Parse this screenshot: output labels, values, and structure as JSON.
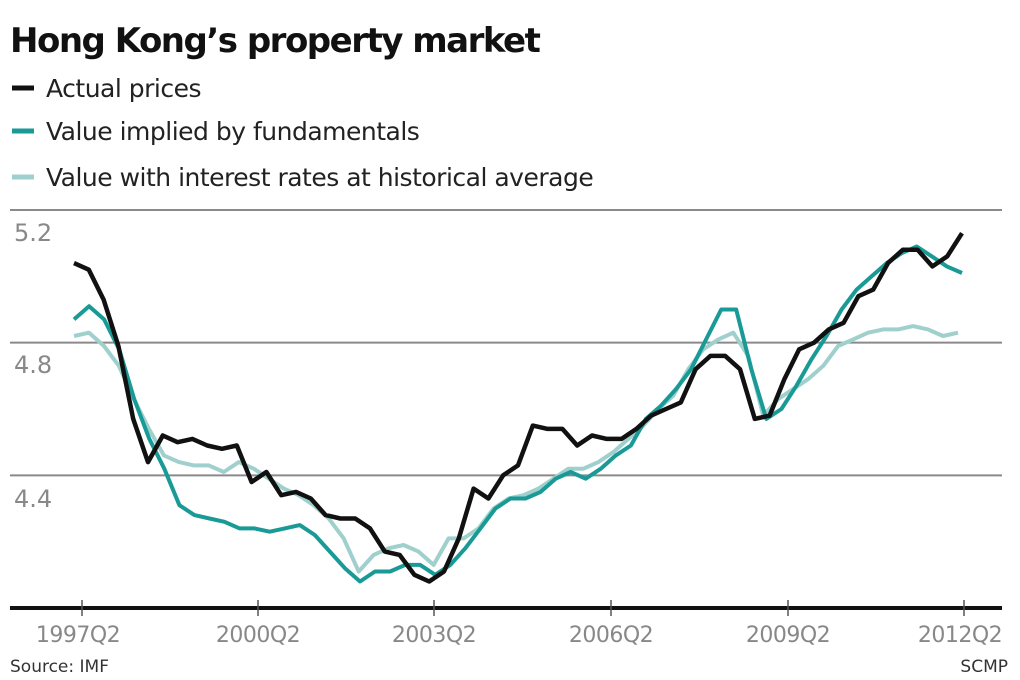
{
  "chart_data": {
    "type": "line",
    "title": "Hong Kong’s property market",
    "xlabel": "",
    "ylabel": "",
    "x_start": "1997Q2",
    "x_end": "2012Q2",
    "x_ticks": [
      "1997Q2",
      "2000Q2",
      "2003Q2",
      "2006Q2",
      "2009Q2",
      "2012Q2"
    ],
    "y_ticks": [
      "5.2",
      "4.8",
      "4.4"
    ],
    "ylim": [
      4.0,
      5.2
    ],
    "grid": true,
    "legend_position": "top-left",
    "series": [
      {
        "name": "Actual prices",
        "color": "#111111",
        "values": [
          5.04,
          5.02,
          4.93,
          4.79,
          4.57,
          4.44,
          4.52,
          4.5,
          4.51,
          4.49,
          4.48,
          4.49,
          4.38,
          4.41,
          4.34,
          4.35,
          4.33,
          4.28,
          4.27,
          4.27,
          4.24,
          4.17,
          4.16,
          4.1,
          4.08,
          4.11,
          4.21,
          4.36,
          4.33,
          4.4,
          4.43,
          4.55,
          4.54,
          4.54,
          4.49,
          4.52,
          4.51,
          4.51,
          4.54,
          4.58,
          4.6,
          4.62,
          4.72,
          4.76,
          4.76,
          4.72,
          4.57,
          4.58,
          4.69,
          4.78,
          4.8,
          4.84,
          4.86,
          4.94,
          4.96,
          5.04,
          5.08,
          5.08,
          5.03,
          5.06,
          5.13
        ]
      },
      {
        "name": "Value implied by fundamentals",
        "color": "#1a9a96",
        "values": [
          4.87,
          4.91,
          4.87,
          4.78,
          4.63,
          4.51,
          4.42,
          4.31,
          4.28,
          4.27,
          4.26,
          4.24,
          4.24,
          4.23,
          4.24,
          4.25,
          4.22,
          4.17,
          4.12,
          4.08,
          4.11,
          4.11,
          4.13,
          4.13,
          4.1,
          4.13,
          4.18,
          4.24,
          4.3,
          4.33,
          4.33,
          4.35,
          4.39,
          4.41,
          4.39,
          4.42,
          4.46,
          4.49,
          4.57,
          4.61,
          4.66,
          4.72,
          4.81,
          4.9,
          4.9,
          4.72,
          4.57,
          4.6,
          4.67,
          4.75,
          4.82,
          4.9,
          4.96,
          5.0,
          5.04,
          5.07,
          5.09,
          5.06,
          5.03,
          5.01
        ]
      },
      {
        "name": "Value with interest rates at historical average",
        "color": "#9fd0cd",
        "values": [
          4.82,
          4.83,
          4.79,
          4.73,
          4.63,
          4.54,
          4.46,
          4.44,
          4.43,
          4.43,
          4.41,
          4.44,
          4.42,
          4.39,
          4.36,
          4.34,
          4.31,
          4.27,
          4.21,
          4.11,
          4.16,
          4.18,
          4.19,
          4.17,
          4.13,
          4.21,
          4.21,
          4.24,
          4.3,
          4.33,
          4.34,
          4.36,
          4.39,
          4.42,
          4.42,
          4.44,
          4.47,
          4.51,
          4.55,
          4.6,
          4.64,
          4.72,
          4.78,
          4.81,
          4.83,
          4.76,
          4.58,
          4.63,
          4.66,
          4.69,
          4.73,
          4.79,
          4.81,
          4.83,
          4.84,
          4.84,
          4.85,
          4.84,
          4.82,
          4.83
        ]
      }
    ],
    "source": "Source: IMF",
    "credit": "SCMP"
  }
}
